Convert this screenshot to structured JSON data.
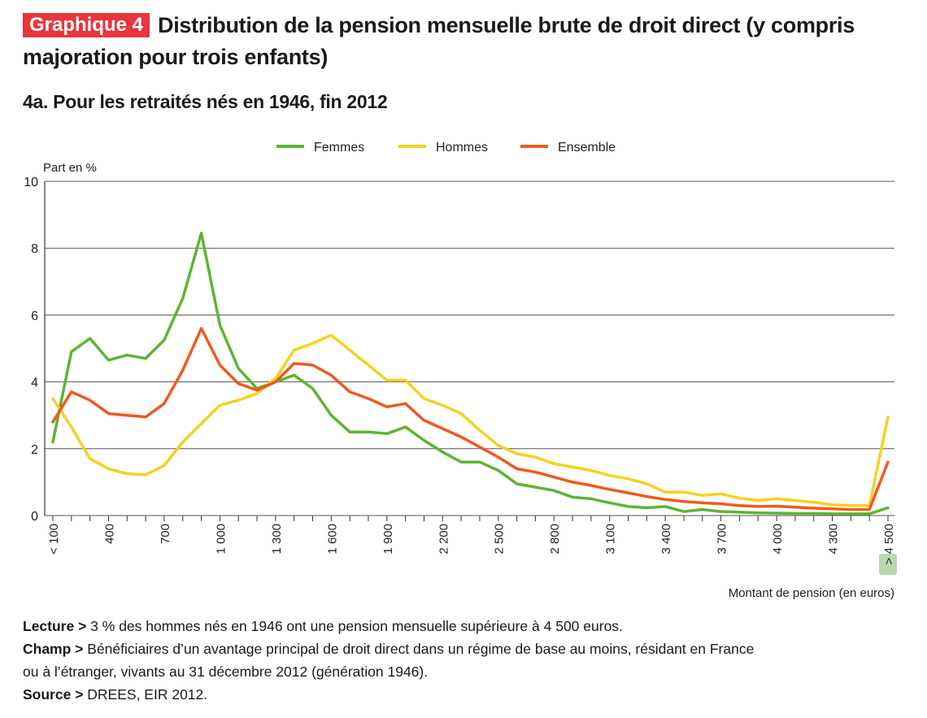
{
  "header": {
    "badge": "Graphique 4",
    "title": "Distribution de la pension mensuelle brute de droit direct (y compris majoration pour trois enfants)"
  },
  "subtitle": "4a. Pour les retraités nés en 1946, fin 2012",
  "notes": {
    "lecture_label": "Lecture >",
    "lecture_text": " 3 % des hommes nés en 1946 ont une pension mensuelle supérieure à 4 500 euros.",
    "champ_label": "Champ >",
    "champ_text_1": " Bénéficiaires d’un avantage principal de droit direct dans un régime de base au moins, résidant en France",
    "champ_text_2": "ou à l’étranger, vivants au 31 décembre 2012 (génération 1946).",
    "source_label": "Source >",
    "source_text": " DREES, EIR 2012."
  },
  "colors": {
    "femmes": "#5cb531",
    "hommes": "#f5d21e",
    "ensemble": "#ef5a1e",
    "grid": "#555555",
    "highlight": "#b9d8b0"
  },
  "chart_data": {
    "type": "line",
    "ylabel": "Part en %",
    "xlabel": "Montant de pension (en euros)",
    "ylim": [
      0,
      10
    ],
    "yticks": [
      "0",
      "2",
      "4",
      "6",
      "8",
      "10"
    ],
    "grid": true,
    "legend_position": "top-center",
    "x": [
      "< 100",
      "200",
      "300",
      "400",
      "500",
      "600",
      "700",
      "800",
      "900",
      "1 000",
      "1 100",
      "1 200",
      "1 300",
      "1 400",
      "1 500",
      "1 600",
      "1 700",
      "1 800",
      "1 900",
      "2 000",
      "2 100",
      "2 200",
      "2 300",
      "2 400",
      "2 500",
      "2 600",
      "2 700",
      "2 800",
      "2 900",
      "3 000",
      "3 100",
      "3 200",
      "3 300",
      "3 400",
      "3 500",
      "3 600",
      "3 700",
      "3 800",
      "3 900",
      "4 000",
      "4 100",
      "4 200",
      "4 300",
      "4 400",
      "4 500",
      "> 4 500"
    ],
    "xtick_labels": [
      "< 100",
      "400",
      "700",
      "1 000",
      "1 300",
      "1 600",
      "1 900",
      "2 200",
      "2 500",
      "2 800",
      "3 100",
      "3 400",
      "3 700",
      "4 000",
      "4 300",
      "> 4 500"
    ],
    "series": [
      {
        "name": "Femmes",
        "color": "#5cb531",
        "values": [
          2.2,
          4.9,
          5.3,
          4.65,
          4.8,
          4.7,
          5.25,
          6.5,
          8.45,
          5.7,
          4.4,
          3.8,
          4.0,
          4.2,
          3.8,
          3.0,
          2.5,
          2.5,
          2.45,
          2.65,
          2.25,
          1.9,
          1.6,
          1.6,
          1.35,
          0.95,
          0.85,
          0.75,
          0.55,
          0.5,
          0.38,
          0.27,
          0.23,
          0.27,
          0.12,
          0.18,
          0.12,
          0.1,
          0.08,
          0.07,
          0.06,
          0.06,
          0.05,
          0.05,
          0.05,
          0.23
        ]
      },
      {
        "name": "Hommes",
        "color": "#f5d21e",
        "values": [
          3.5,
          2.65,
          1.7,
          1.4,
          1.25,
          1.22,
          1.5,
          2.2,
          2.75,
          3.3,
          3.45,
          3.65,
          4.1,
          4.95,
          5.15,
          5.4,
          4.95,
          4.5,
          4.05,
          4.05,
          3.5,
          3.3,
          3.05,
          2.55,
          2.1,
          1.85,
          1.75,
          1.55,
          1.45,
          1.35,
          1.2,
          1.1,
          0.95,
          0.7,
          0.7,
          0.6,
          0.65,
          0.52,
          0.45,
          0.5,
          0.45,
          0.4,
          0.32,
          0.3,
          0.3,
          2.95
        ]
      },
      {
        "name": "Ensemble",
        "color": "#ef5a1e",
        "values": [
          2.8,
          3.7,
          3.45,
          3.05,
          3.0,
          2.95,
          3.35,
          4.35,
          5.6,
          4.5,
          3.95,
          3.75,
          4.0,
          4.55,
          4.5,
          4.2,
          3.7,
          3.5,
          3.25,
          3.35,
          2.85,
          2.6,
          2.35,
          2.05,
          1.75,
          1.4,
          1.3,
          1.15,
          1.0,
          0.9,
          0.78,
          0.68,
          0.57,
          0.48,
          0.42,
          0.38,
          0.35,
          0.3,
          0.27,
          0.28,
          0.25,
          0.22,
          0.2,
          0.18,
          0.18,
          1.6
        ]
      }
    ]
  }
}
